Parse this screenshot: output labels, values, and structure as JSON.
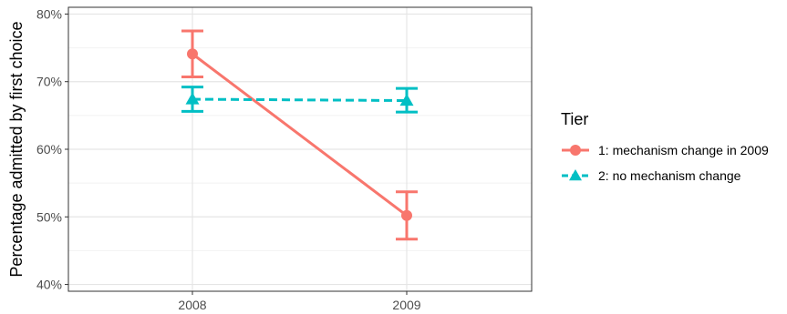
{
  "chart_data": {
    "type": "line",
    "title": "",
    "xlabel": "",
    "ylabel": "Percentage admitted by first choice",
    "categories": [
      "2008",
      "2009"
    ],
    "ylim": [
      39,
      81
    ],
    "yticks": [
      40,
      50,
      60,
      70,
      80
    ],
    "ytick_labels": [
      "40%",
      "50%",
      "60%",
      "70%",
      "80%"
    ],
    "grid": true,
    "legend_title": "Tier",
    "legend_position": "right",
    "series": [
      {
        "name": "1: mechanism change in 2009",
        "color": "#F8766D",
        "marker": "circle",
        "line_style": "solid",
        "values": [
          74.1,
          50.2
        ],
        "lower": [
          70.7,
          46.7
        ],
        "upper": [
          77.5,
          53.7
        ]
      },
      {
        "name": "2: no mechanism change",
        "color": "#00BFC4",
        "marker": "triangle",
        "line_style": "dashed",
        "values": [
          67.4,
          67.2
        ],
        "lower": [
          65.6,
          65.5
        ],
        "upper": [
          69.2,
          69.0
        ]
      }
    ]
  }
}
